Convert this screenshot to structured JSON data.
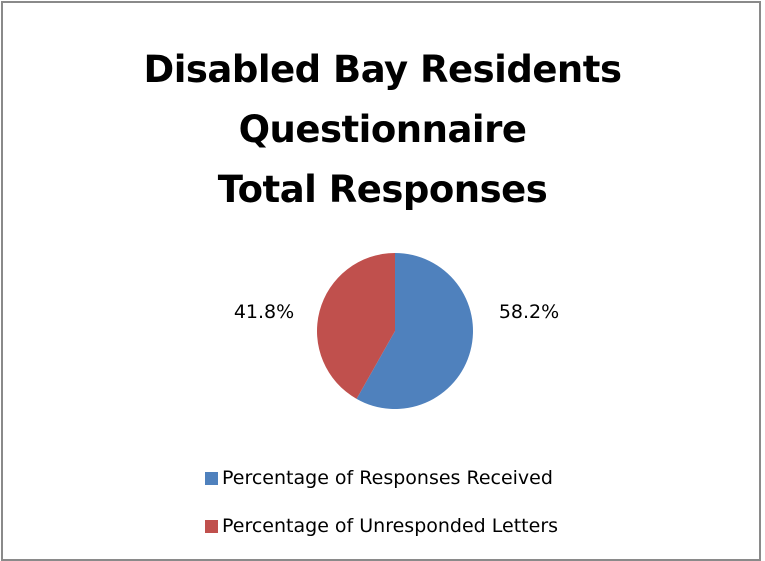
{
  "chart_data": {
    "type": "pie",
    "title_lines": [
      "Disabled Bay Residents",
      "Questionnaire",
      "Total Responses"
    ],
    "categories": [
      "Percentage of Responses Received",
      "Percentage of Unresponded Letters"
    ],
    "values": [
      58.2,
      41.8
    ],
    "data_labels": [
      "58.2%",
      "41.8%"
    ],
    "colors": [
      "#4f81bd",
      "#c0504d"
    ],
    "legend_position": "bottom"
  }
}
